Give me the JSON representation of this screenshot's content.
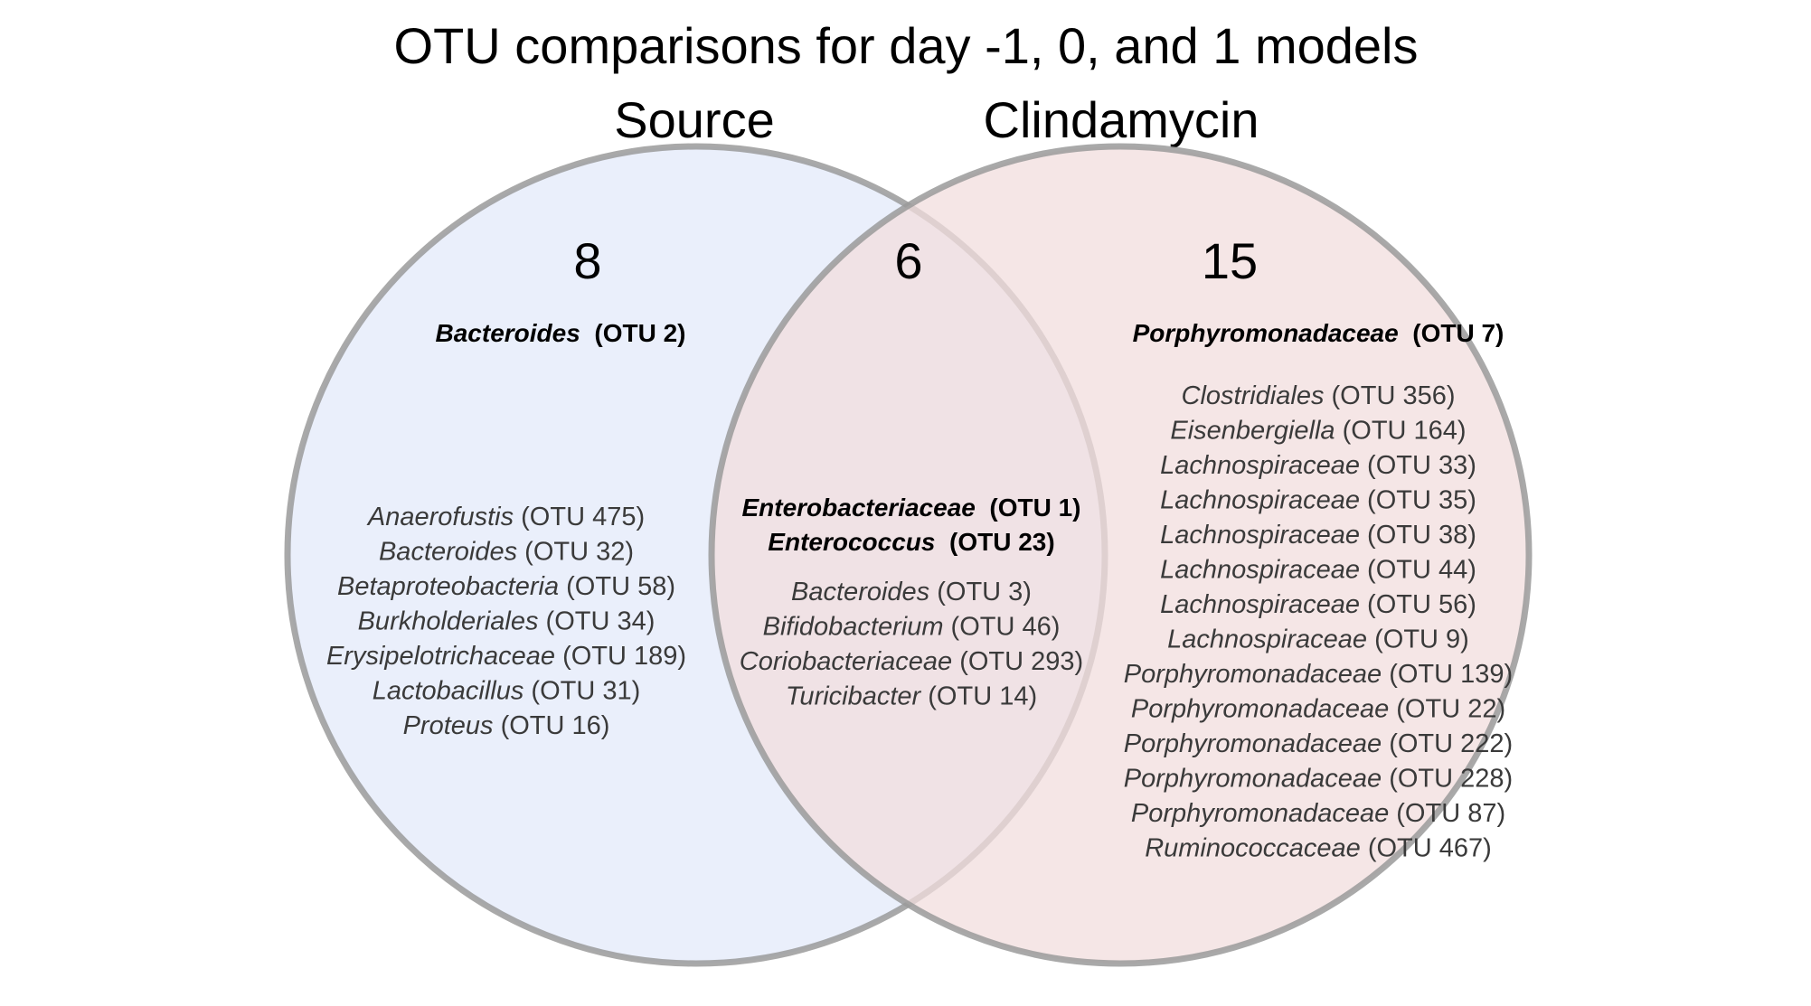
{
  "title": "OTU comparisons for day -1, 0, and 1 models",
  "colors": {
    "left_fill": "#e3e9fa",
    "right_fill": "#f1dede",
    "circle_stroke": "#9a9a9a",
    "text": "#3a3a3a"
  },
  "sets": {
    "left": {
      "label": "Source",
      "count": "8",
      "highlight": [
        {
          "taxon": "Bacteroides",
          "otu": "(OTU 2)"
        }
      ],
      "items": [
        {
          "taxon": "Anaerofustis",
          "otu": "(OTU 475)"
        },
        {
          "taxon": "Bacteroides",
          "otu": "(OTU 32)"
        },
        {
          "taxon": "Betaproteobacteria",
          "otu": "(OTU 58)"
        },
        {
          "taxon": "Burkholderiales",
          "otu": "(OTU 34)"
        },
        {
          "taxon": "Erysipelotrichaceae",
          "otu": "(OTU 189)"
        },
        {
          "taxon": "Lactobacillus",
          "otu": "(OTU 31)"
        },
        {
          "taxon": "Proteus",
          "otu": "(OTU 16)"
        }
      ]
    },
    "overlap": {
      "count": "6",
      "highlight": [
        {
          "taxon": "Enterobacteriaceae",
          "otu": "(OTU 1)"
        },
        {
          "taxon": "Enterococcus",
          "otu": "(OTU 23)"
        }
      ],
      "items": [
        {
          "taxon": "Bacteroides",
          "otu": "(OTU 3)"
        },
        {
          "taxon": "Bifidobacterium",
          "otu": "(OTU 46)"
        },
        {
          "taxon": "Coriobacteriaceae",
          "otu": "(OTU 293)"
        },
        {
          "taxon": "Turicibacter",
          "otu": "(OTU 14)"
        }
      ]
    },
    "right": {
      "label": "Clindamycin",
      "count": "15",
      "highlight": [
        {
          "taxon": "Porphyromonadaceae",
          "otu": "(OTU 7)"
        }
      ],
      "items": [
        {
          "taxon": "Clostridiales",
          "otu": "(OTU 356)"
        },
        {
          "taxon": "Eisenbergiella",
          "otu": "(OTU 164)"
        },
        {
          "taxon": "Lachnospiraceae",
          "otu": "(OTU 33)"
        },
        {
          "taxon": "Lachnospiraceae",
          "otu": "(OTU 35)"
        },
        {
          "taxon": "Lachnospiraceae",
          "otu": "(OTU 38)"
        },
        {
          "taxon": "Lachnospiraceae",
          "otu": "(OTU 44)"
        },
        {
          "taxon": "Lachnospiraceae",
          "otu": "(OTU 56)"
        },
        {
          "taxon": "Lachnospiraceae",
          "otu": "(OTU 9)"
        },
        {
          "taxon": "Porphyromonadaceae",
          "otu": "(OTU 139)"
        },
        {
          "taxon": "Porphyromonadaceae",
          "otu": "(OTU 22)"
        },
        {
          "taxon": "Porphyromonadaceae",
          "otu": "(OTU 222)"
        },
        {
          "taxon": "Porphyromonadaceae",
          "otu": "(OTU 228)"
        },
        {
          "taxon": "Porphyromonadaceae",
          "otu": "(OTU 87)"
        },
        {
          "taxon": "Ruminococcaceae",
          "otu": "(OTU 467)"
        }
      ]
    }
  }
}
